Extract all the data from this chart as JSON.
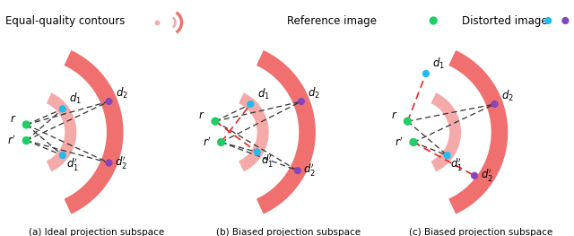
{
  "salmon_color": "#F07070",
  "salmon_light": "#F5AAAA",
  "green_color": "#22CC66",
  "cyan_color": "#22BBEE",
  "purple_color": "#8844BB",
  "bg_color": "#FFFFFF",
  "dashed_color": "#333333",
  "red_dashed": "#EE2222",
  "sub_labels": [
    "(a) Ideal projection subspace",
    "(b) Biased projection subspace",
    "(c) Biased projection subspace"
  ]
}
